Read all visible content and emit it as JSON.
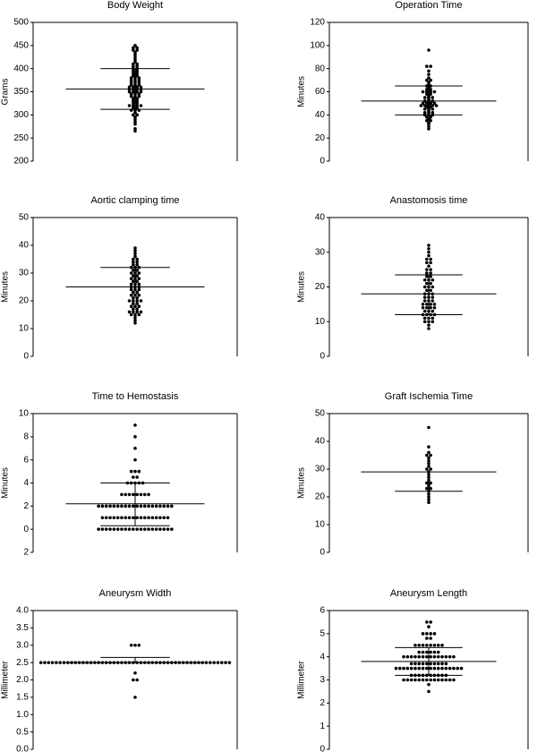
{
  "chart_data": [
    {
      "type": "dot",
      "title": "Body Weight",
      "y_label": "Grams",
      "ylim": [
        200,
        500
      ],
      "yticks": [
        200,
        250,
        300,
        350,
        400,
        450,
        500
      ],
      "color": "#000000",
      "mean": 356,
      "sd_lines": [
        400,
        312
      ],
      "values": [
        265,
        270,
        280,
        285,
        290,
        295,
        300,
        300,
        305,
        310,
        310,
        310,
        315,
        315,
        320,
        320,
        320,
        320,
        325,
        325,
        330,
        330,
        335,
        335,
        340,
        340,
        340,
        345,
        345,
        345,
        350,
        350,
        350,
        350,
        355,
        355,
        355,
        355,
        360,
        360,
        360,
        360,
        365,
        365,
        365,
        370,
        370,
        370,
        375,
        375,
        375,
        380,
        380,
        380,
        385,
        385,
        390,
        390,
        395,
        395,
        400,
        400,
        405,
        405,
        410,
        410,
        415,
        420,
        425,
        430,
        435,
        440,
        440,
        445,
        445,
        450
      ]
    },
    {
      "type": "dot",
      "title": "Operation Time",
      "y_label": "Minutes",
      "ylim": [
        0,
        120
      ],
      "yticks": [
        0,
        20,
        40,
        60,
        80,
        100,
        120
      ],
      "color": "#000000",
      "mean": 52,
      "sd_lines": [
        65,
        40
      ],
      "values": [
        28,
        30,
        32,
        33,
        35,
        35,
        36,
        37,
        38,
        38,
        40,
        40,
        40,
        42,
        42,
        42,
        43,
        44,
        45,
        45,
        45,
        46,
        47,
        47,
        48,
        48,
        48,
        48,
        48,
        49,
        50,
        50,
        50,
        50,
        52,
        52,
        52,
        53,
        54,
        55,
        55,
        55,
        56,
        57,
        58,
        58,
        60,
        60,
        60,
        60,
        62,
        62,
        63,
        64,
        65,
        65,
        66,
        68,
        70,
        70,
        72,
        75,
        78,
        82,
        82,
        96
      ]
    },
    {
      "type": "dot",
      "title": "Aortic clamping time",
      "y_label": "Minutes",
      "ylim": [
        0,
        50
      ],
      "yticks": [
        0,
        10,
        20,
        30,
        40,
        50
      ],
      "color": "#000000",
      "mean": 25,
      "sd_lines": [
        32
      ],
      "values": [
        12,
        13,
        14,
        15,
        15,
        15,
        16,
        16,
        16,
        16,
        17,
        17,
        18,
        18,
        18,
        19,
        19,
        20,
        20,
        20,
        20,
        21,
        21,
        22,
        22,
        22,
        23,
        23,
        24,
        24,
        24,
        25,
        25,
        25,
        26,
        26,
        26,
        27,
        27,
        28,
        28,
        28,
        29,
        29,
        30,
        30,
        30,
        31,
        31,
        32,
        32,
        32,
        33,
        33,
        34,
        34,
        35,
        35,
        36,
        37,
        38,
        39
      ]
    },
    {
      "type": "dot",
      "title": "Anastomosis time",
      "y_label": "Minutes",
      "ylim": [
        0,
        40
      ],
      "yticks": [
        0,
        10,
        20,
        30,
        40
      ],
      "color": "#000000",
      "mean": 18,
      "sd_lines": [
        23.5,
        12
      ],
      "values": [
        8,
        9,
        10,
        10,
        10,
        11,
        11,
        11,
        12,
        12,
        12,
        12,
        13,
        13,
        13,
        14,
        14,
        14,
        14,
        15,
        15,
        15,
        15,
        16,
        16,
        16,
        17,
        17,
        17,
        18,
        18,
        18,
        19,
        19,
        20,
        20,
        20,
        21,
        21,
        22,
        22,
        22,
        23,
        23,
        24,
        24,
        25,
        25,
        26,
        27,
        27,
        28,
        28,
        29,
        30,
        31,
        32
      ]
    },
    {
      "type": "dot",
      "title": "Time to Hemostasis",
      "y_label": "Minutes",
      "ylim": [
        -2,
        10
      ],
      "yticks": [
        {
          "value": -2,
          "label": "2"
        },
        0,
        2,
        4,
        6,
        8,
        10
      ],
      "color": "#000000",
      "mean": 2.2,
      "sd_lines": [
        4,
        0.3
      ],
      "values": [
        0,
        0,
        0,
        0,
        0,
        0,
        0,
        0,
        0,
        0,
        0,
        0,
        0,
        0,
        0,
        0,
        0,
        0,
        0,
        0,
        1,
        1,
        1,
        1,
        1,
        1,
        1,
        1,
        1,
        1,
        1,
        1,
        1,
        1,
        1,
        1,
        1,
        1,
        2,
        2,
        2,
        2,
        2,
        2,
        2,
        2,
        2,
        2,
        2,
        2,
        2,
        2,
        2,
        2,
        2,
        2,
        2,
        2,
        3,
        3,
        3,
        3,
        3,
        3,
        3,
        3,
        4,
        4,
        4,
        4,
        4,
        4.5,
        4.5,
        5,
        5,
        5,
        6,
        7,
        8,
        9
      ]
    },
    {
      "type": "dot",
      "title": "Graft Ischemia Time",
      "y_label": "Minutes",
      "ylim": [
        0,
        50
      ],
      "yticks": [
        0,
        10,
        20,
        30,
        40,
        50
      ],
      "color": "#000000",
      "mean": 29,
      "sd_lines": [
        22
      ],
      "values": [
        18,
        19,
        20,
        21,
        22,
        23,
        23,
        24,
        25,
        25,
        26,
        27,
        28,
        29,
        30,
        30,
        31,
        32,
        33,
        34,
        35,
        35,
        36,
        38,
        45
      ]
    },
    {
      "type": "dot",
      "title": "Aneurysm Width",
      "y_label": "Millimeter",
      "ylim": [
        0,
        4
      ],
      "yticks": [
        {
          "value": 0,
          "label": "0.0"
        },
        0.5,
        {
          "value": 1,
          "label": "1.0"
        },
        1.5,
        {
          "value": 2,
          "label": "2.0"
        },
        2.5,
        {
          "value": 3,
          "label": "3.0"
        },
        3.5,
        {
          "value": 4,
          "label": "4.0"
        }
      ],
      "color": "#000000",
      "mean": 2.5,
      "sd_lines": [
        2.65
      ],
      "values": [
        1.5,
        2.0,
        2.0,
        2.2,
        2.5,
        2.5,
        2.5,
        2.5,
        2.5,
        2.5,
        2.5,
        2.5,
        2.5,
        2.5,
        2.5,
        2.5,
        2.5,
        2.5,
        2.5,
        2.5,
        2.5,
        2.5,
        2.5,
        2.5,
        2.5,
        2.5,
        2.5,
        2.5,
        2.5,
        2.5,
        2.5,
        2.5,
        2.5,
        2.5,
        2.5,
        2.5,
        2.5,
        2.5,
        2.5,
        2.5,
        2.5,
        2.5,
        2.5,
        2.5,
        2.5,
        2.5,
        2.5,
        2.5,
        2.5,
        2.5,
        2.5,
        2.5,
        2.5,
        2.5,
        3.0,
        3.0,
        3.0
      ]
    },
    {
      "type": "dot",
      "title": "Aneurysm Length",
      "y_label": "Millimeter",
      "ylim": [
        0,
        6
      ],
      "yticks": [
        0,
        1,
        2,
        3,
        4,
        5,
        6
      ],
      "color": "#000000",
      "mean": 3.8,
      "sd_lines": [
        4.4,
        3.2
      ],
      "values": [
        2.5,
        2.8,
        3,
        3,
        3,
        3,
        3,
        3,
        3,
        3,
        3,
        3,
        3,
        3,
        3,
        3,
        3.2,
        3.2,
        3.2,
        3.2,
        3.2,
        3.2,
        3.2,
        3.2,
        3.2,
        3.2,
        3.5,
        3.5,
        3.5,
        3.5,
        3.5,
        3.5,
        3.5,
        3.5,
        3.5,
        3.5,
        3.5,
        3.5,
        3.5,
        3.5,
        3.5,
        3.5,
        3.5,
        3.5,
        3.7,
        3.7,
        3.7,
        3.7,
        3.7,
        3.7,
        3.7,
        3.7,
        3.7,
        3.7,
        4,
        4,
        4,
        4,
        4,
        4,
        4,
        4,
        4,
        4,
        4,
        4,
        4,
        4,
        4.2,
        4.2,
        4.2,
        4.2,
        4.2,
        4.2,
        4.5,
        4.5,
        4.5,
        4.5,
        4.5,
        4.5,
        4.5,
        4.5,
        4.8,
        4.8,
        5,
        5,
        5,
        5,
        5.3,
        5.5,
        5.5
      ]
    }
  ]
}
